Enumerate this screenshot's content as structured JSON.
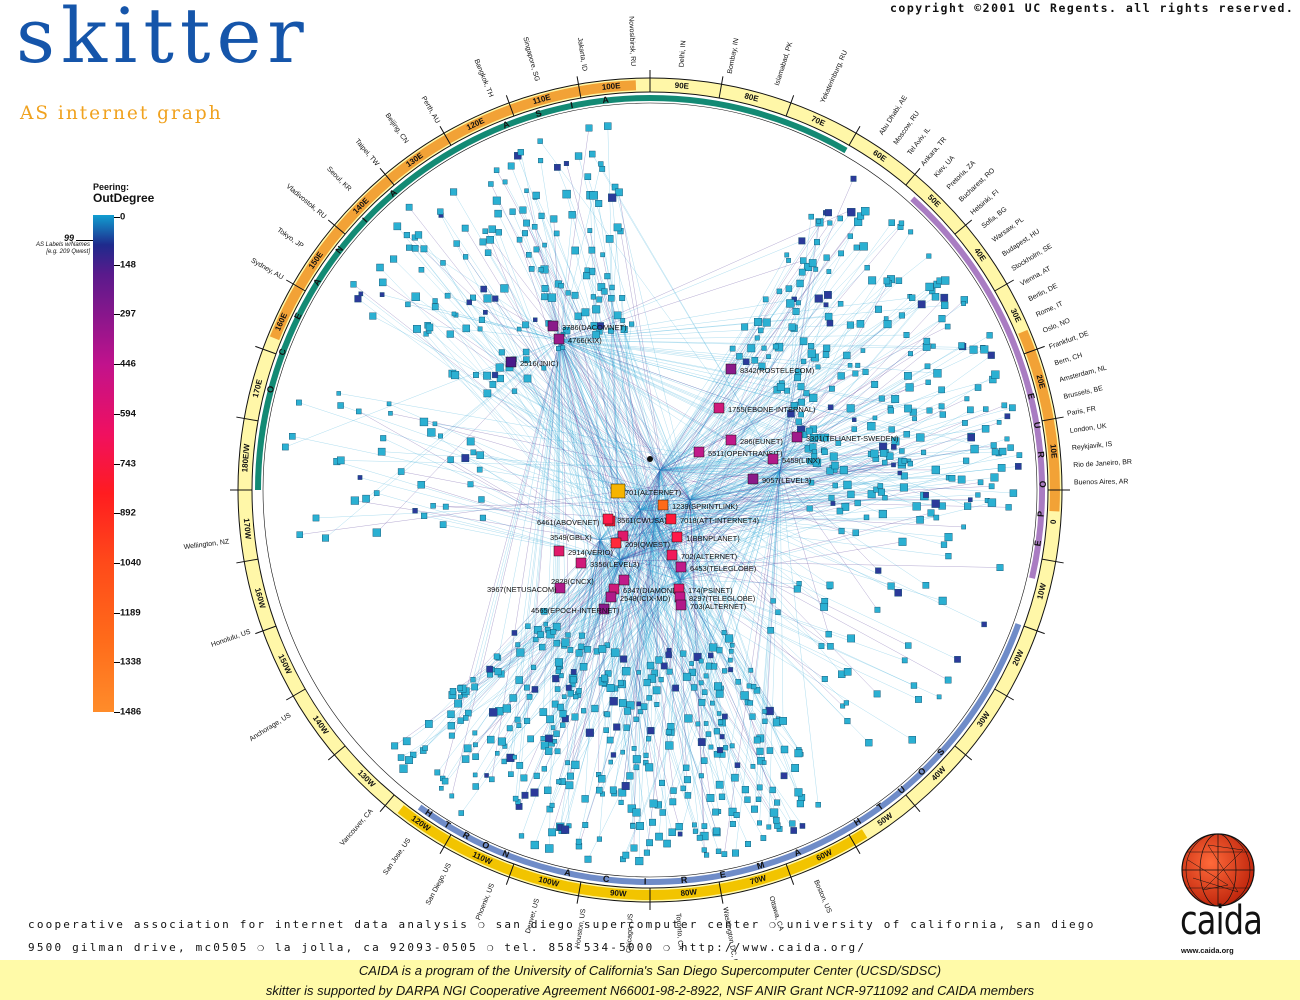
{
  "header": {
    "copyright": "copyright ©2001 UC Regents.  all rights reserved.",
    "title": "skitter",
    "subtitle": "AS internet graph"
  },
  "legend": {
    "peering_label": "Peering:",
    "metric_label": "OutDegree",
    "ticks": [
      "0",
      "148",
      "297",
      "446",
      "594",
      "743",
      "892",
      "1040",
      "1189",
      "1338",
      "1486"
    ],
    "names_threshold": "99",
    "names_note_line1": "AS Labels w/Names",
    "names_note_line2": "[e.g. 209 Qwest]",
    "colors": {
      "low": "#119ed0",
      "mid_low": "#1e2a8c",
      "mid": "#c1128c",
      "mid_high": "#ff1c20",
      "high": "#ff8c2a"
    }
  },
  "ring": {
    "longitude_labels": [
      "90E",
      "80E",
      "70E",
      "60E",
      "50E",
      "40E",
      "30E",
      "20E",
      "10E",
      "0",
      "10W",
      "20W",
      "30W",
      "40W",
      "50W",
      "60W",
      "70W",
      "80W",
      "90W",
      "100W",
      "110W",
      "120W",
      "130W",
      "140W",
      "150W",
      "160W",
      "170W",
      "180E/W",
      "170E",
      "160E",
      "150E",
      "140E",
      "130E",
      "120E",
      "110E",
      "100E"
    ],
    "region_letters_asia": [
      "A",
      "S",
      "I",
      "A"
    ],
    "region_letters_oceania": [
      "O",
      "C",
      "E",
      "A",
      "N",
      "I",
      "A"
    ],
    "region_letters_europe": [
      "E",
      "U",
      "R",
      "O",
      "P",
      "E"
    ],
    "region_letters_south": [
      "S",
      "O",
      "U",
      "T",
      "H"
    ],
    "region_letters_america": [
      "A",
      "M",
      "E",
      "R",
      "I",
      "C",
      "A"
    ],
    "region_letters_north": [
      "N",
      "O",
      "R",
      "T",
      "H"
    ],
    "ring_colors": {
      "outer": "#fff7a8",
      "asia": "#f2a236",
      "europe": "#f2a236",
      "america": "#f2c400",
      "inner_asia": "#138a74",
      "inner_europe": "#a97cc2",
      "inner_america": "#6f8cc8"
    }
  },
  "cities": {
    "top": [
      "Bangkok, TH",
      "Singapore, SG",
      "Jakarta, ID",
      "Novosibirsk, RU",
      "Delhi, IN",
      "Bombay, IN",
      "Islamabad, PK",
      "Yekaterinburg, RU"
    ],
    "asia_left": [
      "Perth, AU",
      "Beijing, CN",
      "Taipei, TW",
      "Seoul, KR",
      "Vladivostok, RU",
      "Tokyo, JP",
      "Sydney, AU"
    ],
    "right": [
      "Abu Dhabi, AE",
      "Moscow, RU",
      "Tel Aviv, IL",
      "Ankara, TR",
      "Kiev, UA",
      "Pretoria, ZA",
      "Bucharest, RO",
      "Helsinki, FI",
      "Sofia, BG",
      "Warsaw, PL",
      "Budapest, HU",
      "Stockholm, SE",
      "Vienna, AT",
      "Berlin, DE",
      "Rome, IT",
      "Oslo, NO",
      "Frankfurt, DE",
      "Bern, CH",
      "Amsterdam, NL",
      "Brussels, BE",
      "Paris, FR",
      "London, UK",
      "Reykjavik, IS",
      "Rio de Janeiro, BR",
      "Buenos Aires, AR"
    ],
    "left": [
      "Wellington, NZ",
      "Honolulu, US",
      "Anchorage, US"
    ],
    "bottom": [
      "Boston, US",
      "Ottawa, CA",
      "Washington DC, US",
      "Toronto, CA",
      "Chicago, US",
      "Houston, US",
      "Denver, US",
      "Phoenix, US",
      "San Diego, US",
      "San Jose, US",
      "Vancouver, CA"
    ]
  },
  "as_labels": [
    "3786(DACOMNET)",
    "4766(KIX)",
    "2516(JNIC)",
    "8342(ROSTELECOM)",
    "1755(EBONE-INTERNAL)",
    "286(EUNET)",
    "3301(TELIANET-SWEDEN)",
    "5511(OPENTRANSIT)",
    "5459(LINX)",
    "9057(LEVEL3)",
    "701(ALTERNET)",
    "1239(SPRINTLINK)",
    "6461(ABOVENET)",
    "3561(CWUSA)",
    "7018(ATT-INTERNET4)",
    "3549(GBLX)",
    "1(BBNPLANET)",
    "209(QWEST)",
    "2914(VERIO)",
    "702(ALTERNET)",
    "3356(LEVEL3)",
    "6453(TELEGLOBE)",
    "2828(CNCX)",
    "3967(NETUSACOM)",
    "6347(DIAMOND)",
    "174(PSINET)",
    "2548(ICIX-MD)",
    "8297(TELEGLOBE)",
    "703(ALTERNET)",
    "4565(EPOCH-INTERNET)"
  ],
  "footer": {
    "line1": "cooperative association for internet data analysis  ❍  san diego supercomputer center  ❍  university of california, san diego",
    "line2": "9500 gilman drive, mc0505  ❍  la jolla, ca  92093-0505  ❍  tel. 858-534-5000  ❍  http://www.caida.org/",
    "band_line1": "CAIDA is a program of the University of California's San Diego Supercomputer Center (UCSD/SDSC)",
    "band_line2": "skitter is supported by DARPA NGI Cooperative Agreement N66001-98-2-8922, NSF ANIR Grant NCR-9711092 and CAIDA members",
    "logo_text": "caida",
    "logo_url": "www.caida.org"
  }
}
